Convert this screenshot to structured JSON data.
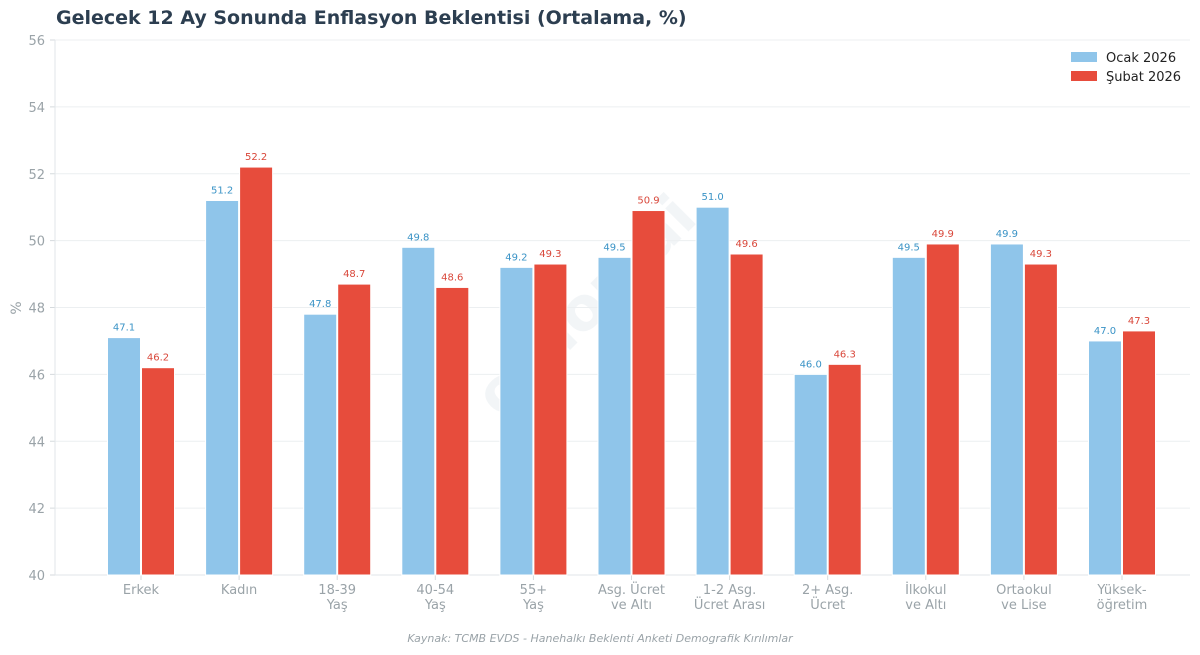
{
  "chart_data": {
    "type": "bar",
    "title": "Gelecek 12 Ay Sonunda Enflasyon Beklentisi (Ortalama, %)",
    "ylabel": "%",
    "ylim": [
      40,
      56
    ],
    "yticks": [
      "40",
      "42",
      "44",
      "46",
      "48",
      "50",
      "52",
      "54",
      "56"
    ],
    "grid": true,
    "legend_position": "top-right",
    "categories": [
      [
        "Erkek"
      ],
      [
        "Kadın"
      ],
      [
        "18-39",
        "Yaş"
      ],
      [
        "40-54",
        "Yaş"
      ],
      [
        "55+",
        "Yaş"
      ],
      [
        "Asg. Ücret",
        "ve Altı"
      ],
      [
        "1-2 Asg.",
        "Ücret Arası"
      ],
      [
        "2+ Asg.",
        "Ücret"
      ],
      [
        "İlkokul",
        "ve Altı"
      ],
      [
        "Ortaokul",
        "ve Lise"
      ],
      [
        "Yüksek-",
        "öğretim"
      ]
    ],
    "series": [
      {
        "name": "Ocak 2026",
        "color": "#8fc5ea",
        "label_color": "#3a93c6",
        "values": [
          47.1,
          51.2,
          47.8,
          49.8,
          49.2,
          49.5,
          51.0,
          46.0,
          49.5,
          49.9,
          47.0
        ],
        "labels": [
          "47.1",
          "51.2",
          "47.8",
          "49.8",
          "49.2",
          "49.5",
          "51.0",
          "46.0",
          "49.5",
          "49.9",
          "47.0"
        ]
      },
      {
        "name": "Şubat 2026",
        "color": "#e74c3c",
        "label_color": "#d9473a",
        "values": [
          46.2,
          52.2,
          48.7,
          48.6,
          49.3,
          50.9,
          49.6,
          46.3,
          49.9,
          49.3,
          47.3
        ],
        "labels": [
          "46.2",
          "52.2",
          "48.7",
          "48.6",
          "49.3",
          "50.9",
          "49.6",
          "46.3",
          "49.9",
          "49.3",
          "47.3"
        ]
      }
    ],
    "source_note": "Kaynak: TCMB EVDS - Hanehalkı Beklenti Anketi Demografik Kırılımlar",
    "watermark": "orhon.ai"
  }
}
